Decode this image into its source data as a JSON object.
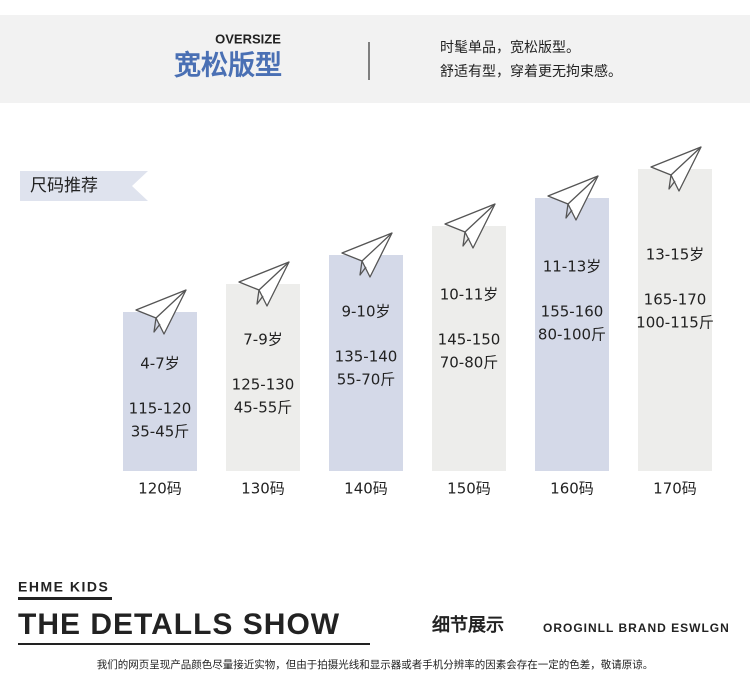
{
  "header": {
    "label": "OVERSIZE",
    "title": "宽松版型",
    "lines": [
      "时髦单品，宽松版型。",
      "舒适有型，穿着更无拘束感。"
    ]
  },
  "section_label": "尺码推荐",
  "sizes": [
    {
      "age": "4-7岁",
      "height": "115-120",
      "weight": "35-45斤",
      "size": "120码"
    },
    {
      "age": "7-9岁",
      "height": "125-130",
      "weight": "45-55斤",
      "size": "130码"
    },
    {
      "age": "9-10岁",
      "height": "135-140",
      "weight": "55-70斤",
      "size": "140码"
    },
    {
      "age": "10-11岁",
      "height": "145-150",
      "weight": "70-80斤",
      "size": "150码"
    },
    {
      "age": "11-13岁",
      "height": "155-160",
      "weight": "80-100斤",
      "size": "160码"
    },
    {
      "age": "13-15岁",
      "height": "165-170",
      "weight": "100-115斤",
      "size": "170码"
    }
  ],
  "footer": {
    "brand": "EHME KIDS",
    "title": "THE DETALLS SHOW",
    "subtitle": "细节展示",
    "brand_line": "OROGINLL BRAND ESWLGN",
    "note": "我们的网页呈现产品颜色尽量接近实物，但由于拍摄光线和显示器或者手机分辨率的因素会存在一定的色差，敬请原谅。"
  }
}
